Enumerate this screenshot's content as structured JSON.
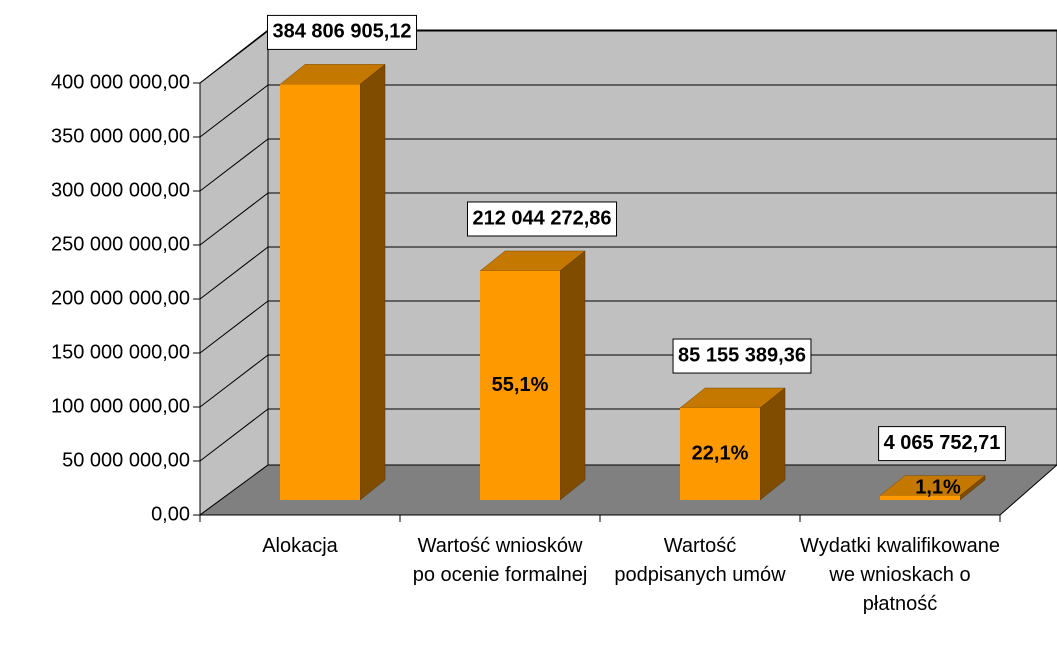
{
  "chart_data": {
    "type": "bar3d",
    "categories": [
      "Alokacja",
      "Wartość wniosków po ocenie formalnej",
      "Wartość podpisanych umów",
      "Wydatki kwalifikowane we wnioskach o płatność"
    ],
    "values": [
      384806905.12,
      212044272.86,
      85155389.36,
      4065752.71
    ],
    "value_labels": [
      "384 806 905,12",
      "212 044 272,86",
      "85 155 389,36",
      "4 065 752,71"
    ],
    "share_labels": [
      null,
      "55,1%",
      "22,1%",
      "1,1%"
    ],
    "color": "#ff9900",
    "ylim": [
      0,
      400000000
    ],
    "yticks": [
      {
        "value": 0,
        "label": "0,00"
      },
      {
        "value": 50000000,
        "label": "50 000 000,00"
      },
      {
        "value": 100000000,
        "label": "100 000 000,00"
      },
      {
        "value": 150000000,
        "label": "150 000 000,00"
      },
      {
        "value": 200000000,
        "label": "200 000 000,00"
      },
      {
        "value": 250000000,
        "label": "250 000 000,00"
      },
      {
        "value": 300000000,
        "label": "300 000 000,00"
      },
      {
        "value": 350000000,
        "label": "350 000 000,00"
      },
      {
        "value": 400000000,
        "label": "400 000 000,00"
      }
    ],
    "grid": true
  }
}
